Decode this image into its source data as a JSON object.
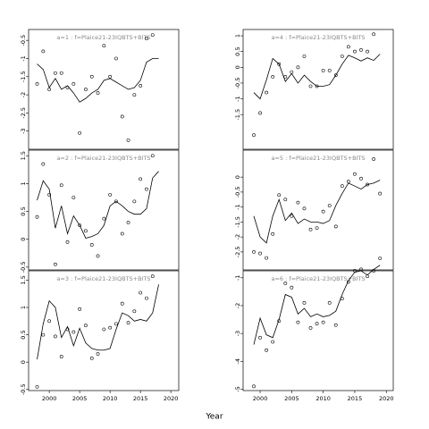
{
  "xlabel": "Year",
  "chart_data": [
    {
      "type": "line",
      "title": "a=1 : f=Plaice21-23IQBTS+BITS",
      "x": [
        1998,
        1999,
        2000,
        2001,
        2002,
        2003,
        2004,
        2005,
        2006,
        2007,
        2008,
        2009,
        2010,
        2011,
        2012,
        2013,
        2014,
        2015,
        2016,
        2017,
        2018
      ],
      "series": [
        {
          "kind": "scatter",
          "color": "#000000",
          "values": [
            -1.7,
            -0.8,
            -1.85,
            -1.4,
            -1.4,
            -1.8,
            -1.7,
            -3.05,
            -1.85,
            -1.5,
            -1.95,
            -0.65,
            -1.5,
            -1.0,
            -2.6,
            -3.25,
            -2.0,
            -1.75,
            -0.45,
            -0.35,
            null
          ]
        },
        {
          "kind": "line",
          "color": "#000000",
          "values": [
            -1.15,
            -1.3,
            -1.8,
            -1.55,
            -1.85,
            -1.75,
            -1.95,
            -2.2,
            -2.1,
            -1.95,
            -1.85,
            -1.6,
            -1.55,
            -1.65,
            -1.75,
            -1.85,
            -1.8,
            -1.6,
            -1.1,
            -1.0,
            -1.0
          ]
        }
      ],
      "xlim": [
        1996.6,
        2021.3
      ],
      "ylim": [
        -3.5,
        -0.2
      ],
      "yticks": [
        -0.5,
        -1.0,
        -1.5,
        -2.0,
        -2.5,
        -3.0
      ]
    },
    {
      "type": "line",
      "title": "a=4 : f=Plaice21-23IQBTS+BITS",
      "x": [
        1999,
        2000,
        2001,
        2002,
        2003,
        2004,
        2005,
        2006,
        2007,
        2008,
        2009,
        2010,
        2011,
        2012,
        2013,
        2014,
        2015,
        2016,
        2017,
        2018,
        2019
      ],
      "series": [
        {
          "kind": "scatter",
          "color": "#000000",
          "values": [
            -2.15,
            -1.45,
            -0.8,
            -0.3,
            0.1,
            -0.3,
            -0.15,
            0.0,
            0.35,
            -0.6,
            -0.6,
            -0.1,
            -0.1,
            -0.25,
            0.35,
            0.65,
            0.5,
            0.55,
            0.5,
            1.05,
            null
          ]
        },
        {
          "kind": "line",
          "color": "#000000",
          "values": [
            -0.8,
            -1.0,
            -0.4,
            0.28,
            0.1,
            -0.45,
            -0.2,
            -0.5,
            -0.25,
            -0.45,
            -0.6,
            -0.6,
            -0.55,
            -0.25,
            0.1,
            0.38,
            0.3,
            0.2,
            0.3,
            0.22,
            0.42
          ]
        }
      ],
      "xlim": [
        1997.3,
        2021.1
      ],
      "ylim": [
        -2.6,
        1.2
      ],
      "yticks": [
        1.0,
        0.5,
        0.0,
        -0.5,
        -1.0,
        -1.5
      ]
    },
    {
      "type": "line",
      "title": "a=2 : f=Plaice21-23IQBTS+BITS",
      "x": [
        1998,
        1999,
        2000,
        2001,
        2002,
        2003,
        2004,
        2005,
        2006,
        2007,
        2008,
        2009,
        2010,
        2011,
        2012,
        2013,
        2014,
        2015,
        2016,
        2017,
        2018
      ],
      "series": [
        {
          "kind": "scatter",
          "color": "#000000",
          "values": [
            0.4,
            1.35,
            0.8,
            -0.45,
            0.97,
            -0.05,
            0.75,
            0.25,
            0.15,
            -0.1,
            -0.3,
            0.37,
            0.8,
            0.68,
            0.1,
            0.3,
            0.68,
            1.08,
            0.9,
            1.5,
            null
          ]
        },
        {
          "kind": "line",
          "color": "#000000",
          "values": [
            0.7,
            1.05,
            0.9,
            0.2,
            0.6,
            0.1,
            0.42,
            0.25,
            0.02,
            0.05,
            0.1,
            0.25,
            0.6,
            0.68,
            0.6,
            0.5,
            0.45,
            0.45,
            0.55,
            1.1,
            1.22
          ]
        }
      ],
      "xlim": [
        1996.6,
        2021.3
      ],
      "ylim": [
        -0.55,
        1.6
      ],
      "yticks": [
        1.5,
        1.0,
        0.5,
        0.0,
        -0.5
      ]
    },
    {
      "type": "line",
      "title": "a=5 : f=Plaice21-23IQBTS+BITS",
      "x": [
        1999,
        2000,
        2001,
        2002,
        2003,
        2004,
        2005,
        2006,
        2007,
        2008,
        2009,
        2010,
        2011,
        2012,
        2013,
        2014,
        2015,
        2016,
        2017,
        2018,
        2019
      ],
      "series": [
        {
          "kind": "scatter",
          "color": "#000000",
          "values": [
            -2.5,
            -2.55,
            -2.7,
            -1.9,
            -0.6,
            -0.75,
            -1.3,
            -0.85,
            -1.05,
            -1.75,
            -1.7,
            -1.15,
            -0.95,
            -1.65,
            -0.3,
            -0.15,
            0.1,
            -0.05,
            -0.25,
            0.6,
            -0.55
          ]
        },
        {
          "kind": "line",
          "color": "#000000",
          "values": [
            -1.3,
            -2.0,
            -2.2,
            -1.3,
            -0.75,
            -1.45,
            -1.2,
            -1.55,
            -1.4,
            -1.5,
            -1.5,
            -1.55,
            -1.45,
            -0.95,
            -0.55,
            -0.2,
            -0.3,
            -0.4,
            -0.25,
            -0.2,
            -0.1
          ]
        }
      ],
      "xlim": [
        1997.3,
        2021.1
      ],
      "ylim": [
        -3.1,
        0.9
      ],
      "yticks": [
        0.0,
        -0.5,
        -1.0,
        -1.5,
        -2.0,
        -2.5
      ]
    },
    {
      "type": "line",
      "title": "a=3 : f=Plaice21-23IQBTS+BITS",
      "x": [
        1998,
        1999,
        2000,
        2001,
        2002,
        2003,
        2004,
        2005,
        2006,
        2007,
        2008,
        2009,
        2010,
        2011,
        2012,
        2013,
        2014,
        2015,
        2016,
        2017,
        2018
      ],
      "series": [
        {
          "kind": "scatter",
          "color": "#000000",
          "values": [
            -0.45,
            0.5,
            0.75,
            0.47,
            0.1,
            0.6,
            0.55,
            0.97,
            0.67,
            0.07,
            0.15,
            0.6,
            0.63,
            0.7,
            1.07,
            0.72,
            0.93,
            1.27,
            1.17,
            1.57,
            null
          ]
        },
        {
          "kind": "line",
          "color": "#000000",
          "values": [
            0.05,
            0.7,
            1.12,
            1.0,
            0.45,
            0.65,
            0.3,
            0.62,
            0.35,
            0.25,
            0.22,
            0.22,
            0.25,
            0.6,
            0.9,
            0.85,
            0.75,
            0.78,
            0.75,
            0.9,
            1.42
          ]
        }
      ],
      "xlim": [
        1996.6,
        2021.3
      ],
      "ylim": [
        -0.52,
        1.67
      ],
      "yticks": [
        1.5,
        1.0,
        0.5,
        0.0,
        -0.5
      ],
      "xticks": [
        2000,
        2005,
        2010,
        2015,
        2020
      ]
    },
    {
      "type": "line",
      "title": "a=6 : f=Plaice21-23IQBTS+BITS",
      "x": [
        1999,
        2000,
        2001,
        2002,
        2003,
        2004,
        2005,
        2006,
        2007,
        2008,
        2009,
        2010,
        2011,
        2012,
        2013,
        2014,
        2015,
        2016,
        2017,
        2018,
        2019
      ],
      "series": [
        {
          "kind": "scatter",
          "color": "#000000",
          "values": [
            -4.9,
            -3.15,
            -3.6,
            -3.3,
            -2.55,
            -1.2,
            -1.35,
            -2.6,
            -1.9,
            -2.8,
            -2.65,
            -2.6,
            -1.9,
            -2.7,
            -1.75,
            -1.15,
            -0.75,
            -0.7,
            -0.95,
            -0.75,
            -0.3
          ]
        },
        {
          "kind": "line",
          "color": "#000000",
          "values": [
            -3.4,
            -2.45,
            -3.05,
            -3.15,
            -2.5,
            -1.6,
            -1.7,
            -2.3,
            -2.1,
            -2.4,
            -2.3,
            -2.4,
            -2.35,
            -2.2,
            -1.6,
            -1.1,
            -0.8,
            -0.75,
            -0.9,
            -0.7,
            -0.55
          ]
        }
      ],
      "xlim": [
        1997.3,
        2021.1
      ],
      "ylim": [
        -5.05,
        -0.75
      ],
      "yticks": [
        -1,
        -2,
        -3,
        -4,
        -5
      ],
      "xticks": [
        2000,
        2005,
        2010,
        2015,
        2020
      ]
    }
  ]
}
